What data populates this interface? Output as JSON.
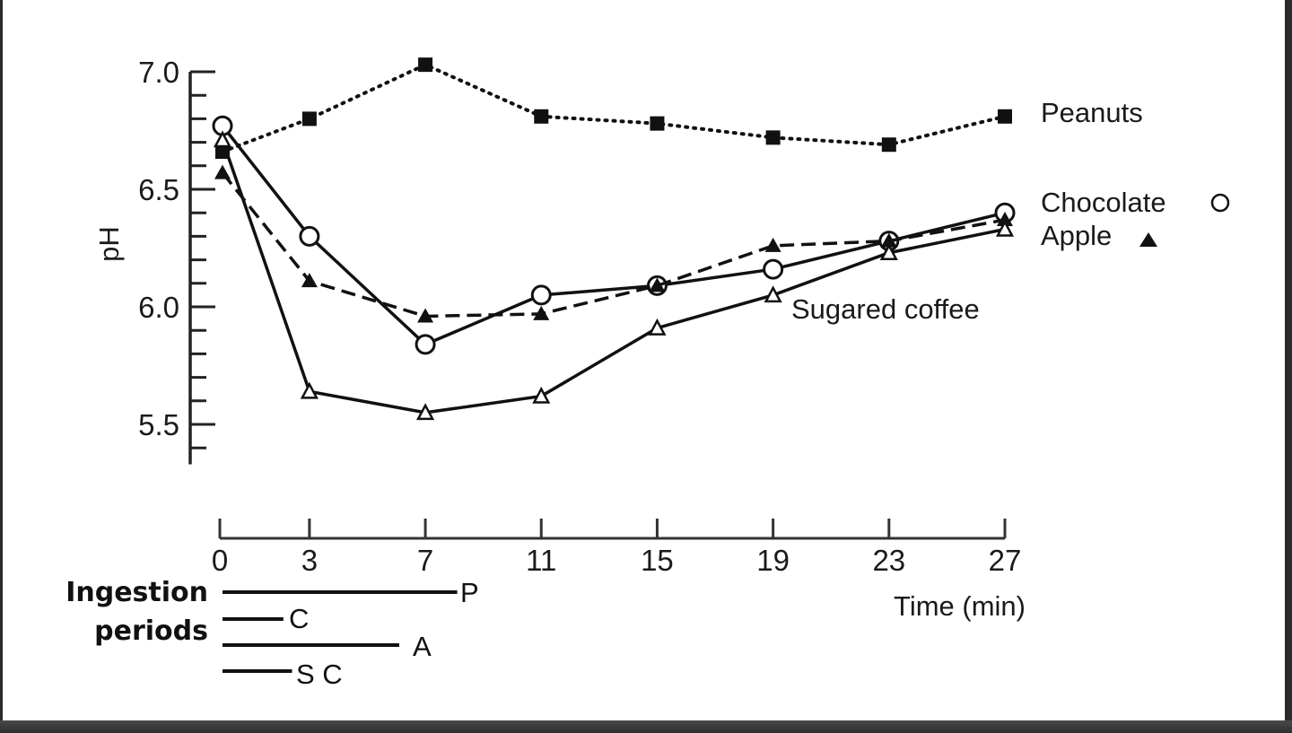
{
  "chart_data": {
    "type": "line",
    "title": "",
    "xlabel": "Time (min)",
    "ylabel": "pH",
    "ylim": [
      5.33,
      7.0
    ],
    "y_ticks": [
      "7.0",
      "6.5",
      "6.0",
      "5.5"
    ],
    "y_minor_step": 0.1,
    "x": [
      0,
      3,
      7,
      11,
      15,
      19,
      23,
      27
    ],
    "x_ticks": [
      "0",
      "3",
      "7",
      "11",
      "15",
      "19",
      "23",
      "27"
    ],
    "grid": false,
    "legend_position": "inline-right",
    "series": [
      {
        "name": "Peanuts",
        "marker": "filled-square",
        "line": "dotted",
        "values": [
          6.66,
          6.8,
          7.03,
          6.81,
          6.78,
          6.72,
          6.69,
          6.81
        ]
      },
      {
        "name": "Chocolate",
        "marker": "open-circle",
        "line": "solid",
        "values": [
          6.77,
          6.3,
          5.84,
          6.05,
          6.09,
          6.16,
          6.28,
          6.4
        ]
      },
      {
        "name": "Apple",
        "marker": "filled-triangle",
        "line": "dashed",
        "values": [
          6.57,
          6.11,
          5.96,
          5.97,
          6.09,
          6.26,
          6.28,
          6.37
        ]
      },
      {
        "name": "Sugared coffee",
        "marker": "open-triangle",
        "line": "solid",
        "values": [
          6.71,
          5.64,
          5.55,
          5.62,
          5.91,
          6.05,
          6.23,
          6.33
        ]
      }
    ],
    "annotations": {
      "ingestion_periods_label": [
        "Ingestion",
        "periods"
      ],
      "ingestion_periods": [
        {
          "code": "P",
          "series": "Peanuts",
          "start_min": 0,
          "end_min": 8.1
        },
        {
          "code": "C",
          "series": "Chocolate",
          "start_min": 0,
          "end_min": 2.1
        },
        {
          "code": "A",
          "series": "Apple",
          "start_min": 0,
          "end_min": 6.1
        },
        {
          "code": "S C",
          "series": "Sugared coffee",
          "start_min": 0,
          "end_min": 2.4
        }
      ]
    }
  },
  "labels": {
    "peanuts": "Peanuts",
    "chocolate": "Chocolate",
    "chocolate_marker": "○",
    "apple": "Apple",
    "apple_marker": "▲",
    "sugared_coffee": "Sugared coffee",
    "ylabel": "pH",
    "xlabel": "Time (min)",
    "ingestion_line1": "Ingestion",
    "ingestion_line2": "periods",
    "code_p": "P",
    "code_c": "C",
    "code_a": "A",
    "code_sc": "S C"
  }
}
